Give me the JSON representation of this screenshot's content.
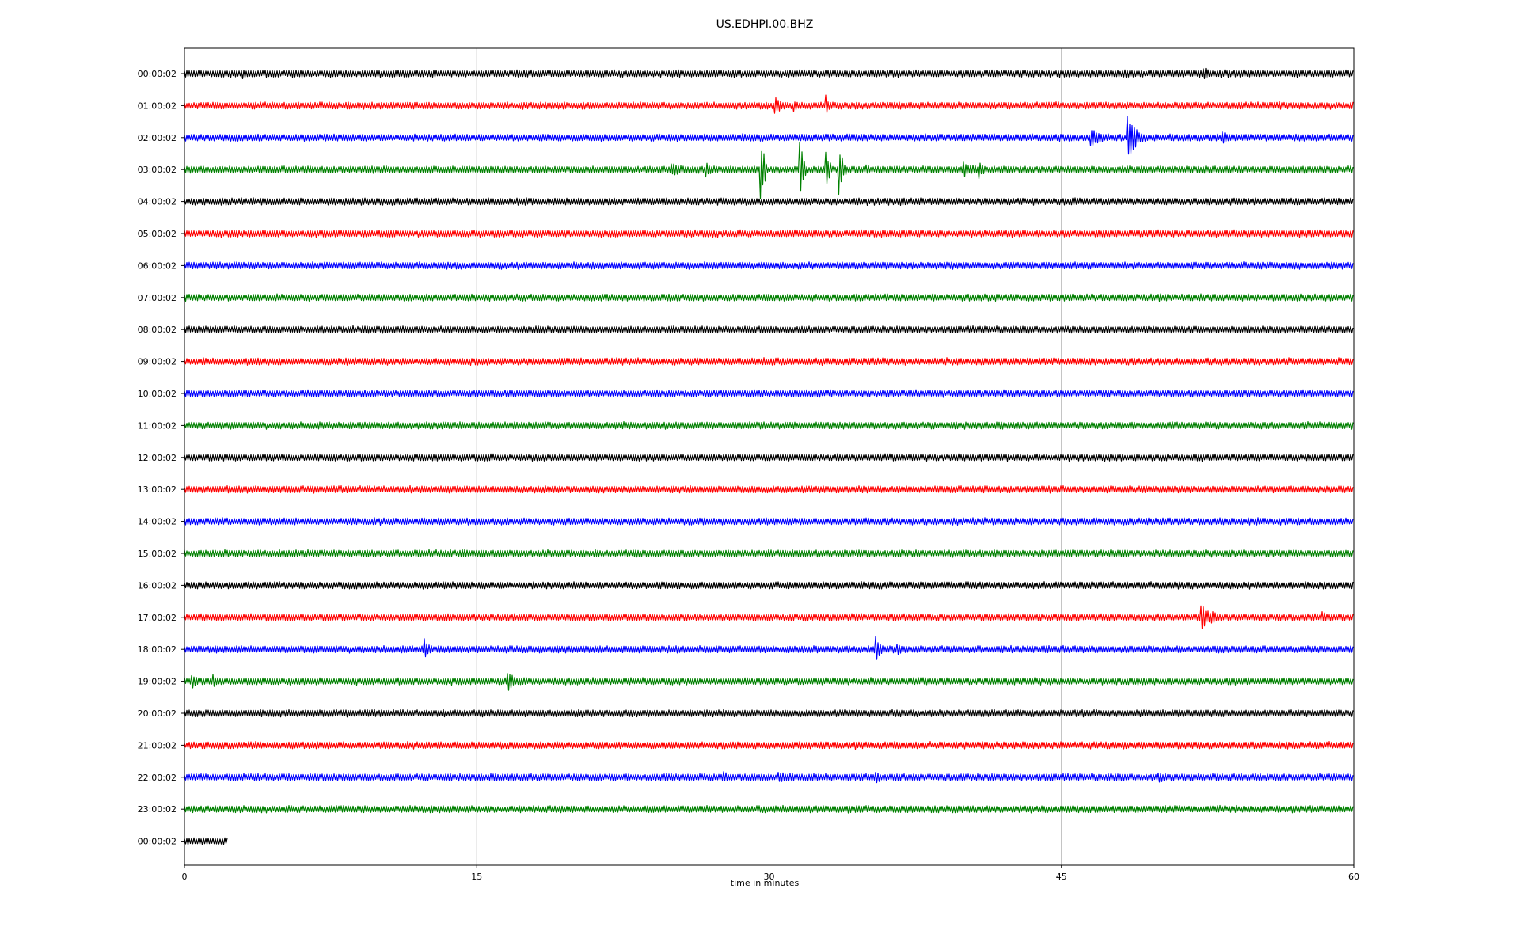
{
  "chart_data": {
    "type": "line",
    "title": "US.EDHPI.00.BHZ",
    "xlabel": "time in minutes",
    "ylabel": "",
    "xlim": [
      0,
      60
    ],
    "x_ticks": [
      "0",
      "15",
      "30",
      "45",
      "60"
    ],
    "grid": "vertical lines at 15, 30, 45 minutes",
    "legend": "none",
    "row_colors": [
      "#000000",
      "#ff0000",
      "#0000ff",
      "#008000"
    ],
    "series": [
      {
        "label": "00:00:02",
        "color": "#000000",
        "end_minute": 60,
        "events": [
          {
            "t": 3.0,
            "amp": 0.35,
            "dur": 1.0
          },
          {
            "t": 5.5,
            "amp": 0.3,
            "dur": 2.5
          },
          {
            "t": 35.0,
            "amp": 0.2,
            "dur": 0.3
          },
          {
            "t": 52.3,
            "amp": 0.4,
            "dur": 1.2
          }
        ]
      },
      {
        "label": "01:00:02",
        "color": "#ff0000",
        "end_minute": 60,
        "events": [
          {
            "t": 30.3,
            "amp": 0.6,
            "dur": 0.8
          },
          {
            "t": 31.3,
            "amp": 0.4,
            "dur": 0.5
          },
          {
            "t": 32.9,
            "amp": 0.7,
            "dur": 0.4
          }
        ]
      },
      {
        "label": "02:00:02",
        "color": "#0000ff",
        "end_minute": 60,
        "events": [
          {
            "t": 46.5,
            "amp": 0.6,
            "dur": 1.5
          },
          {
            "t": 48.4,
            "amp": 1.4,
            "dur": 1.0
          },
          {
            "t": 53.3,
            "amp": 0.5,
            "dur": 0.8
          }
        ]
      },
      {
        "label": "03:00:02",
        "color": "#008000",
        "end_minute": 60,
        "events": [
          {
            "t": 20.0,
            "amp": 0.2,
            "dur": 0.5
          },
          {
            "t": 25.0,
            "amp": 0.4,
            "dur": 2.0
          },
          {
            "t": 26.8,
            "amp": 0.6,
            "dur": 0.6
          },
          {
            "t": 29.6,
            "amp": 2.2,
            "dur": 0.3
          },
          {
            "t": 31.6,
            "amp": 2.3,
            "dur": 0.3
          },
          {
            "t": 32.9,
            "amp": 1.8,
            "dur": 0.3
          },
          {
            "t": 33.6,
            "amp": 1.6,
            "dur": 0.4
          },
          {
            "t": 35.0,
            "amp": 0.3,
            "dur": 1.0
          },
          {
            "t": 40.0,
            "amp": 0.5,
            "dur": 2.0
          },
          {
            "t": 40.8,
            "amp": 0.6,
            "dur": 0.5
          }
        ]
      },
      {
        "label": "04:00:02",
        "color": "#000000",
        "end_minute": 60,
        "events": []
      },
      {
        "label": "05:00:02",
        "color": "#ff0000",
        "end_minute": 60,
        "events": []
      },
      {
        "label": "06:00:02",
        "color": "#0000ff",
        "end_minute": 60,
        "events": []
      },
      {
        "label": "07:00:02",
        "color": "#008000",
        "end_minute": 60,
        "events": []
      },
      {
        "label": "08:00:02",
        "color": "#000000",
        "end_minute": 60,
        "events": []
      },
      {
        "label": "09:00:02",
        "color": "#ff0000",
        "end_minute": 60,
        "events": []
      },
      {
        "label": "10:00:02",
        "color": "#0000ff",
        "end_minute": 60,
        "events": []
      },
      {
        "label": "11:00:02",
        "color": "#008000",
        "end_minute": 60,
        "events": []
      },
      {
        "label": "12:00:02",
        "color": "#000000",
        "end_minute": 60,
        "events": []
      },
      {
        "label": "13:00:02",
        "color": "#ff0000",
        "end_minute": 60,
        "events": []
      },
      {
        "label": "14:00:02",
        "color": "#0000ff",
        "end_minute": 60,
        "events": []
      },
      {
        "label": "15:00:02",
        "color": "#008000",
        "end_minute": 60,
        "events": []
      },
      {
        "label": "16:00:02",
        "color": "#000000",
        "end_minute": 60,
        "events": []
      },
      {
        "label": "17:00:02",
        "color": "#ff0000",
        "end_minute": 60,
        "events": [
          {
            "t": 52.2,
            "amp": 0.8,
            "dur": 1.5
          },
          {
            "t": 58.4,
            "amp": 0.4,
            "dur": 0.6
          }
        ]
      },
      {
        "label": "18:00:02",
        "color": "#0000ff",
        "end_minute": 60,
        "events": [
          {
            "t": 12.3,
            "amp": 0.9,
            "dur": 0.5
          },
          {
            "t": 19.0,
            "amp": 0.2,
            "dur": 4.0
          },
          {
            "t": 35.5,
            "amp": 0.8,
            "dur": 0.5
          },
          {
            "t": 36.6,
            "amp": 0.5,
            "dur": 0.4
          }
        ]
      },
      {
        "label": "19:00:02",
        "color": "#008000",
        "end_minute": 60,
        "events": [
          {
            "t": 0.4,
            "amp": 0.6,
            "dur": 0.7
          },
          {
            "t": 1.5,
            "amp": 0.5,
            "dur": 0.5
          },
          {
            "t": 16.6,
            "amp": 0.8,
            "dur": 0.6
          }
        ]
      },
      {
        "label": "20:00:02",
        "color": "#000000",
        "end_minute": 60,
        "events": []
      },
      {
        "label": "21:00:02",
        "color": "#ff0000",
        "end_minute": 60,
        "events": [
          {
            "t": 34.4,
            "amp": 0.3,
            "dur": 0.4
          }
        ]
      },
      {
        "label": "22:00:02",
        "color": "#0000ff",
        "end_minute": 60,
        "events": [
          {
            "t": 27.7,
            "amp": 0.4,
            "dur": 0.6
          },
          {
            "t": 30.5,
            "amp": 0.35,
            "dur": 3.5
          },
          {
            "t": 35.5,
            "amp": 0.4,
            "dur": 0.8
          },
          {
            "t": 50.0,
            "amp": 0.35,
            "dur": 1.5
          }
        ]
      },
      {
        "label": "23:00:02",
        "color": "#008000",
        "end_minute": 60,
        "events": []
      },
      {
        "label": "00:00:02",
        "color": "#000000",
        "end_minute": 2.2,
        "events": []
      }
    ]
  }
}
